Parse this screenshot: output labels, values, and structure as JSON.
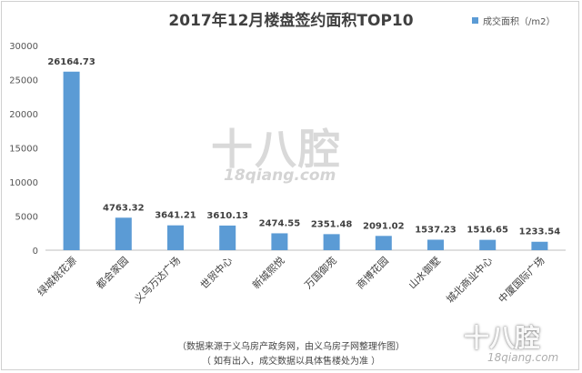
{
  "chart_data": {
    "type": "bar",
    "title": "2017年12月楼盘签约面积TOP10",
    "legend": {
      "label": "成交面积（/m2）",
      "position": "top-right"
    },
    "categories": [
      "绿城桃花源",
      "都会家园",
      "义乌万达广场",
      "世贸中心",
      "新城熙悦",
      "万国御苑",
      "商博花园",
      "山水御墅",
      "城北商业中心",
      "中厦国际广场"
    ],
    "series": [
      {
        "name": "成交面积（/m2）",
        "values": [
          26164.73,
          4763.32,
          3641.21,
          3610.13,
          2474.55,
          2351.48,
          2091.02,
          1537.23,
          1516.65,
          1233.54
        ],
        "color": "#5b9bd5"
      }
    ],
    "y_ticks": [
      "0",
      "5000",
      "10000",
      "15000",
      "20000",
      "25000",
      "30000"
    ],
    "ylim": [
      0,
      30000
    ],
    "grid": false
  },
  "watermark": {
    "main": "十八腔",
    "sub": "18qiang.com"
  },
  "footer": {
    "source": "（数据来源于义乌房产政务网，由义乌房子网整理作图）",
    "disclaimer": "（ 如有出入，成交数据以具体售楼处为准 ）"
  }
}
